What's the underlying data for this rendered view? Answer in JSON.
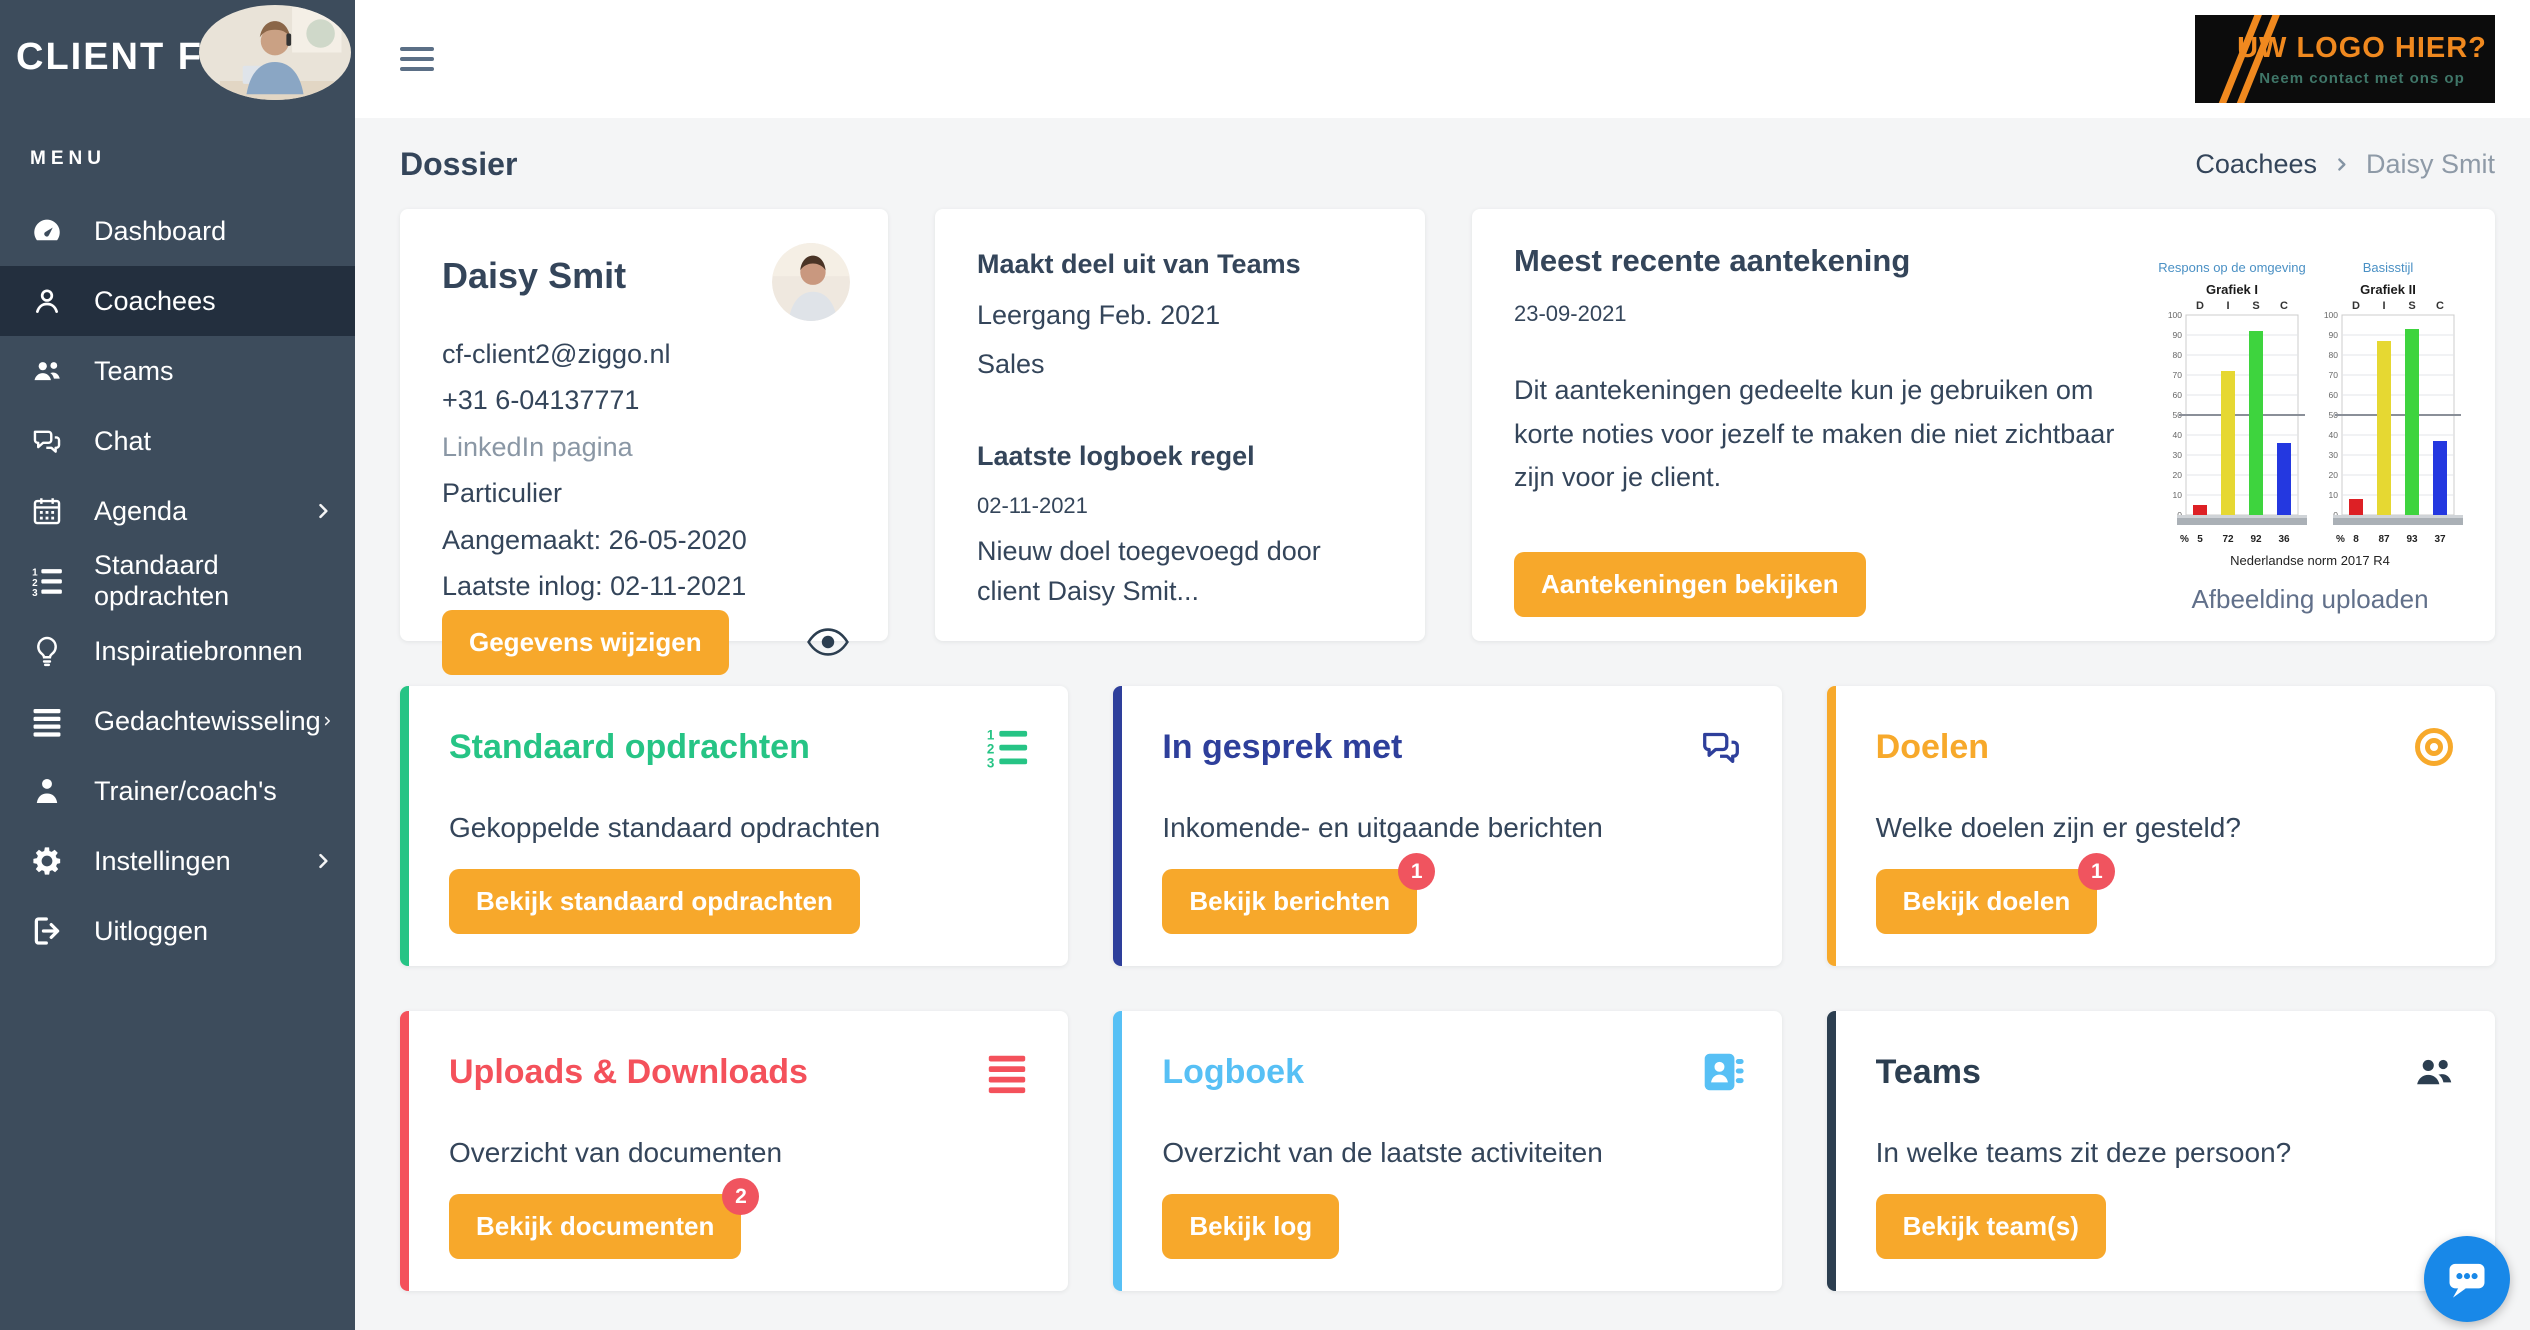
{
  "theme": {
    "sidebar_bg": "#3d4c5c",
    "sidebar_active": "#232f3e",
    "content_bg": "#f4f5f6",
    "accent_orange": "#f7a82b",
    "badge_red": "#f0545f",
    "text_dark": "#34455a",
    "text_muted": "#8a97a5",
    "fab_blue": "#1888e8",
    "logo_orange": "#f0891f",
    "logo_teal": "#3f7668"
  },
  "brand": {
    "name": "CLIENT FILES",
    "menu_label": "MENU"
  },
  "sidebar": {
    "items": [
      {
        "label": "Dashboard",
        "icon": "gauge",
        "active": false,
        "chevron": false
      },
      {
        "label": "Coachees",
        "icon": "person",
        "active": true,
        "chevron": false
      },
      {
        "label": "Teams",
        "icon": "people",
        "active": false,
        "chevron": false
      },
      {
        "label": "Chat",
        "icon": "chat-bubbles",
        "active": false,
        "chevron": false
      },
      {
        "label": "Agenda",
        "icon": "calendar",
        "active": false,
        "chevron": true
      },
      {
        "label": "Standaard opdrachten",
        "icon": "list-numbered",
        "active": false,
        "chevron": false
      },
      {
        "label": "Inspiratiebronnen",
        "icon": "lightbulb",
        "active": false,
        "chevron": false
      },
      {
        "label": "Gedachtewisseling",
        "icon": "list-lines",
        "active": false,
        "chevron": true
      },
      {
        "label": "Trainer/coach's",
        "icon": "person-tie",
        "active": false,
        "chevron": false
      },
      {
        "label": "Instellingen",
        "icon": "gear",
        "active": false,
        "chevron": true
      },
      {
        "label": "Uitloggen",
        "icon": "sign-out",
        "active": false,
        "chevron": false
      }
    ]
  },
  "topbar": {
    "logo": {
      "line1": "UW LOGO HIER?",
      "line2": "Neem contact met ons op"
    }
  },
  "page": {
    "title": "Dossier",
    "breadcrumb": {
      "parent": "Coachees",
      "current": "Daisy Smit"
    }
  },
  "cards": {
    "profile": {
      "name": "Daisy Smit",
      "email": "cf-client2@ziggo.nl",
      "phone": "+31 6-04137771",
      "linkedin_label": "LinkedIn pagina",
      "type": "Particulier",
      "created": "Aangemaakt: 26-05-2020",
      "last_login": "Laatste inlog: 02-11-2021",
      "button": "Gegevens wijzigen"
    },
    "teams_info": {
      "title": "Maakt deel uit van Teams",
      "teams": [
        "Leergang Feb. 2021",
        "Sales"
      ],
      "log_title": "Laatste logboek regel",
      "log_date": "02-11-2021",
      "log_text": "Nieuw doel toegevoegd door client Daisy Smit..."
    },
    "note": {
      "title": "Meest recente aantekening",
      "date": "23-09-2021",
      "body": "Dit aantekeningen gedeelte kun je gebruiken om korte noties voor jezelf te maken die niet zichtbaar zijn voor je client.",
      "button": "Aantekeningen bekijken",
      "upload_label": "Afbeelding uploaden"
    }
  },
  "chart_data": [
    {
      "type": "bar",
      "title": "Respons op de omgeving",
      "subtitle": "Grafiek I",
      "categories": [
        "D",
        "I",
        "S",
        "C"
      ],
      "values": [
        5,
        72,
        92,
        36
      ],
      "colors": [
        "#dd2025",
        "#e6d832",
        "#3ed43e",
        "#2438e0"
      ],
      "ylim": [
        0,
        100
      ],
      "tick_step": 10,
      "ref_line": 50,
      "unit": "%",
      "grid": true,
      "legend": "none"
    },
    {
      "type": "bar",
      "title": "Basisstijl",
      "subtitle": "Grafiek II",
      "categories": [
        "D",
        "I",
        "S",
        "C"
      ],
      "values": [
        8,
        87,
        93,
        37
      ],
      "colors": [
        "#dd2025",
        "#e6d832",
        "#3ed43e",
        "#2438e0"
      ],
      "ylim": [
        0,
        100
      ],
      "tick_step": 10,
      "ref_line": 50,
      "unit": "%",
      "grid": true,
      "legend": "none"
    }
  ],
  "chart_caption": "Nederlandse norm 2017 R4",
  "tiles": [
    {
      "title": "Standaard opdrachten",
      "desc": "Gekoppelde standaard opdrachten",
      "button": "Bekijk standaard opdrachten",
      "accent": "#26c485",
      "icon": "list-numbered",
      "badge": null
    },
    {
      "title": "In gesprek met",
      "desc": "Inkomende- en uitgaande berichten",
      "button": "Bekijk berichten",
      "accent": "#2e3f9b",
      "icon": "chat-bubbles",
      "badge": 1
    },
    {
      "title": "Doelen",
      "desc": "Welke doelen zijn er gesteld?",
      "button": "Bekijk doelen",
      "accent": "#f7a92b",
      "icon": "target",
      "badge": 1
    },
    {
      "title": "Uploads & Downloads",
      "desc": "Overzicht van documenten",
      "button": "Bekijk documenten",
      "accent": "#f4515b",
      "icon": "list-lines",
      "badge": 2
    },
    {
      "title": "Logboek",
      "desc": "Overzicht van de laatste activiteiten",
      "button": "Bekijk log",
      "accent": "#57c0f5",
      "icon": "contact-book",
      "badge": null
    },
    {
      "title": "Teams",
      "desc": "In welke teams zit deze persoon?",
      "button": "Bekijk team(s)",
      "accent": "#2c3e50",
      "icon": "people",
      "badge": null
    }
  ]
}
